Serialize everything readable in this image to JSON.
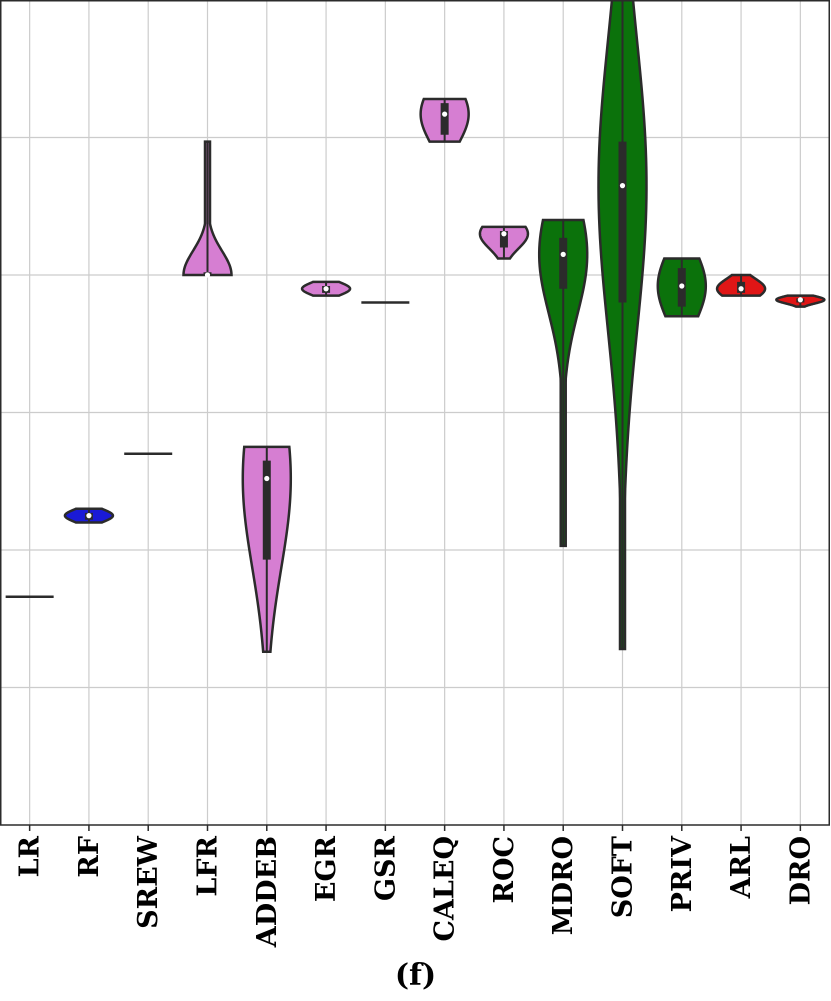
{
  "caption": "(f)",
  "chart_data": {
    "type": "violin",
    "title": "",
    "xlabel": "",
    "ylabel": "",
    "ylim": [
      0,
      6
    ],
    "y_ticks": [
      1,
      2,
      3,
      4,
      5
    ],
    "y_tick_labels_visible": false,
    "grid": true,
    "categories": [
      "LR",
      "RF",
      "SREW",
      "LFR",
      "ADDEB",
      "EGR",
      "GSR",
      "CALEQ",
      "ROC",
      "MDRO",
      "SOFT",
      "PRIV",
      "ARL",
      "DRO"
    ],
    "colors": {
      "LR": "#2b2b2b",
      "RF": "#1a1ad6",
      "SREW": "#2b2b2b",
      "LFR": "#d67ed2",
      "ADDEB": "#d67ed2",
      "EGR": "#d67ed2",
      "GSR": "#2b2b2b",
      "CALEQ": "#d67ed2",
      "ROC": "#d67ed2",
      "MDRO": "#0b720b",
      "SOFT": "#0b720b",
      "PRIV": "#0b720b",
      "ARL": "#e01616",
      "DRO": "#e01616"
    },
    "series": [
      {
        "category": "LR",
        "min": 1.66,
        "q1": 1.66,
        "median": 1.66,
        "q3": 1.66,
        "max": 1.66
      },
      {
        "category": "RF",
        "min": 2.2,
        "q1": 2.22,
        "median": 2.25,
        "q3": 2.27,
        "max": 2.3
      },
      {
        "category": "SREW",
        "min": 2.7,
        "q1": 2.7,
        "median": 2.7,
        "q3": 2.7,
        "max": 2.7
      },
      {
        "category": "LFR",
        "min": 4.0,
        "q1": 4.0,
        "median": 4.0,
        "q3": 4.02,
        "max": 4.97
      },
      {
        "category": "ADDEB",
        "min": 1.26,
        "q1": 1.93,
        "median": 2.52,
        "q3": 2.65,
        "max": 2.75
      },
      {
        "category": "EGR",
        "min": 3.85,
        "q1": 3.87,
        "median": 3.9,
        "q3": 3.92,
        "max": 3.95
      },
      {
        "category": "GSR",
        "min": 3.8,
        "q1": 3.8,
        "median": 3.8,
        "q3": 3.8,
        "max": 3.8
      },
      {
        "category": "CALEQ",
        "min": 4.97,
        "q1": 5.02,
        "median": 5.17,
        "q3": 5.25,
        "max": 5.28
      },
      {
        "category": "ROC",
        "min": 4.12,
        "q1": 4.2,
        "median": 4.3,
        "q3": 4.32,
        "max": 4.35
      },
      {
        "category": "MDRO",
        "min": 2.03,
        "q1": 3.9,
        "median": 4.15,
        "q3": 4.27,
        "max": 4.4
      },
      {
        "category": "SOFT",
        "min": 1.28,
        "q1": 3.8,
        "median": 4.65,
        "q3": 4.97,
        "max": 6.38
      },
      {
        "category": "PRIV",
        "min": 3.7,
        "q1": 3.77,
        "median": 3.92,
        "q3": 4.05,
        "max": 4.12
      },
      {
        "category": "ARL",
        "min": 3.85,
        "q1": 3.87,
        "median": 3.9,
        "q3": 3.95,
        "max": 4.0
      },
      {
        "category": "DRO",
        "min": 3.77,
        "q1": 3.8,
        "median": 3.82,
        "q3": 3.83,
        "max": 3.85
      }
    ]
  }
}
